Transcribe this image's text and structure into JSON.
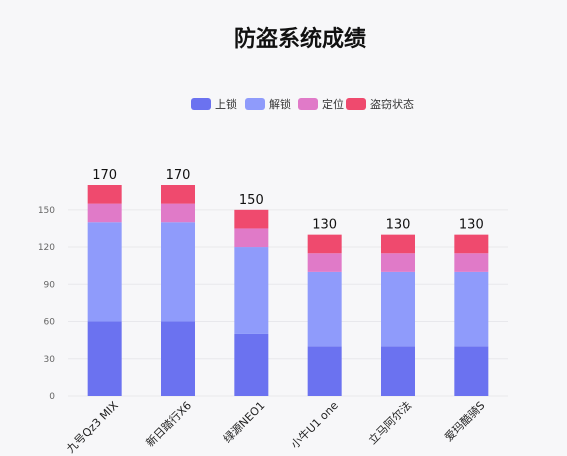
{
  "chart_data": {
    "type": "bar",
    "stacked": true,
    "title": "防盗系统成绩",
    "categories": [
      "九号Qz3 MIX",
      "新日踏行X6",
      "绿源NEO1",
      "小牛U1 one",
      "立马阿尔法",
      "爱玛酷骑S"
    ],
    "series": [
      {
        "name": "上锁",
        "color": "#6b72f0",
        "values": [
          60,
          60,
          50,
          40,
          40,
          40
        ]
      },
      {
        "name": "解锁",
        "color": "#8f9bfb",
        "values": [
          80,
          80,
          70,
          60,
          60,
          60
        ]
      },
      {
        "name": "定位",
        "color": "#e07ac8",
        "values": [
          15,
          15,
          15,
          15,
          15,
          15
        ]
      },
      {
        "name": "盗窃状态",
        "color": "#ef4a6e",
        "values": [
          15,
          15,
          15,
          15,
          15,
          15
        ]
      }
    ],
    "totals": [
      "170",
      "170",
      "150",
      "130",
      "130",
      "130"
    ],
    "yticks": [
      "0",
      "30",
      "60",
      "90",
      "120",
      "150"
    ],
    "ylim": [
      0,
      170
    ],
    "legend_position": "top-center",
    "grid": true
  }
}
